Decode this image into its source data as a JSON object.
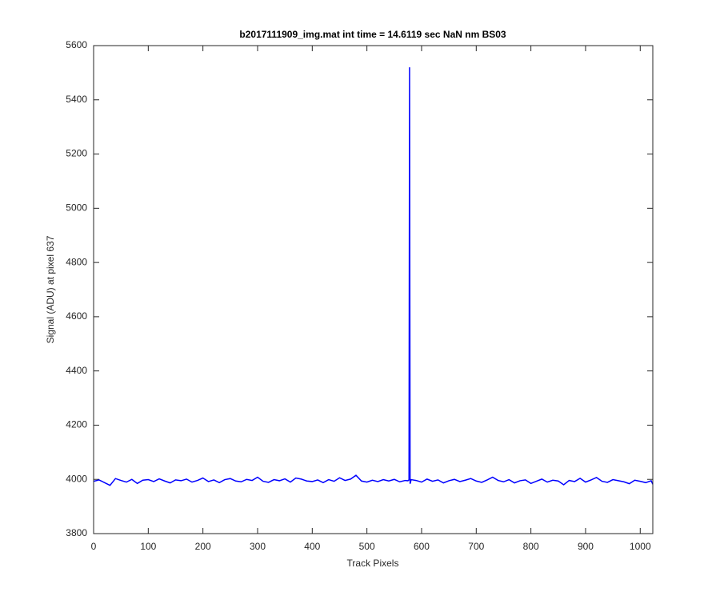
{
  "chart_data": {
    "type": "line",
    "title": "b2017111909_img.mat int time = 14.6119 sec  NaN nm BS03",
    "x_label": "Track Pixels",
    "y_label": "Signal (ADU) at pixel 637",
    "x": [
      0,
      10,
      20,
      30,
      40,
      50,
      60,
      70,
      80,
      90,
      100,
      110,
      120,
      130,
      140,
      150,
      160,
      170,
      180,
      190,
      200,
      210,
      220,
      230,
      240,
      250,
      260,
      270,
      280,
      290,
      300,
      310,
      320,
      330,
      340,
      350,
      360,
      370,
      380,
      390,
      400,
      410,
      420,
      430,
      440,
      450,
      460,
      470,
      480,
      490,
      500,
      510,
      520,
      530,
      540,
      550,
      560,
      570,
      575,
      577,
      578,
      579,
      581,
      590,
      600,
      610,
      620,
      630,
      640,
      650,
      660,
      670,
      680,
      690,
      700,
      710,
      720,
      730,
      740,
      750,
      760,
      770,
      780,
      790,
      800,
      810,
      820,
      830,
      840,
      850,
      860,
      870,
      880,
      890,
      900,
      910,
      920,
      930,
      940,
      950,
      960,
      970,
      980,
      990,
      1000,
      1010,
      1020,
      1023
    ],
    "series": [
      {
        "color": "#0000ff",
        "values": [
          3993,
          3998,
          3988,
          3978,
          4003,
          3996,
          3990,
          4000,
          3985,
          3997,
          3999,
          3992,
          4002,
          3994,
          3987,
          3998,
          3995,
          4001,
          3990,
          3996,
          4005,
          3992,
          3998,
          3988,
          3999,
          4003,
          3994,
          3991,
          4000,
          3996,
          4008,
          3993,
          3989,
          3999,
          3995,
          4002,
          3990,
          4005,
          4001,
          3994,
          3992,
          3998,
          3988,
          3999,
          3993,
          4006,
          3996,
          4001,
          4015,
          3994,
          3990,
          3997,
          3992,
          3999,
          3994,
          4000,
          3991,
          3996,
          3995,
          3998,
          5520,
          3984,
          3999,
          3996,
          3990,
          4001,
          3993,
          3998,
          3987,
          3995,
          4000,
          3992,
          3997,
          4003,
          3994,
          3989,
          3998,
          4008,
          3996,
          3991,
          3999,
          3987,
          3995,
          3998,
          3985,
          3993,
          4001,
          3990,
          3997,
          3994,
          3980,
          3996,
          3992,
          4004,
          3990,
          3998,
          4007,
          3993,
          3989,
          3999,
          3995,
          3991,
          3984,
          3997,
          3993,
          3988,
          3995,
          3982
        ]
      }
    ],
    "xlim": [
      0,
      1023
    ],
    "ylim": [
      3800,
      5600
    ],
    "xticks": [
      0,
      100,
      200,
      300,
      400,
      500,
      600,
      700,
      800,
      900,
      1000
    ],
    "yticks": [
      3800,
      4000,
      4200,
      4400,
      4600,
      4800,
      5000,
      5200,
      5400,
      5600
    ],
    "grid": false
  }
}
